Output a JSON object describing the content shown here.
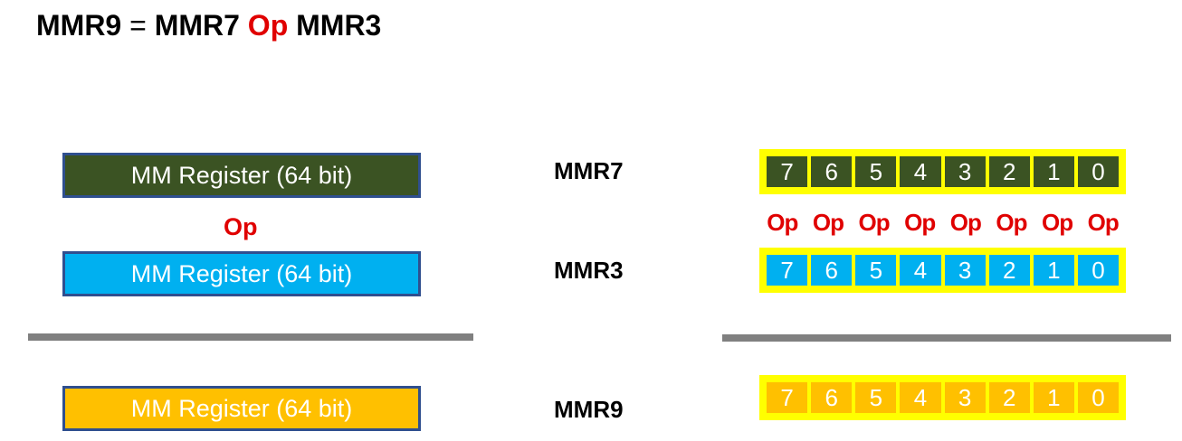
{
  "title": {
    "lhs": "MMR9",
    "eq": "=",
    "rhs1": "MMR7",
    "op": "Op",
    "rhs2": "MMR3"
  },
  "left": {
    "register_label": "MM Register (64 bit)",
    "op_label": "Op"
  },
  "registers": {
    "a": "MMR7",
    "b": "MMR3",
    "c": "MMR9"
  },
  "lanes": [
    "7",
    "6",
    "5",
    "4",
    "3",
    "2",
    "1",
    "0"
  ],
  "lane_ops": [
    "Op",
    "Op",
    "Op",
    "Op",
    "Op",
    "Op",
    "Op",
    "Op"
  ],
  "colors": {
    "mmr7": "#3b5323",
    "mmr3": "#00b0f0",
    "mmr9": "#ffc000",
    "op": "#e00000",
    "lane_border": "#ffff00",
    "register_border": "#2f4f8f"
  }
}
